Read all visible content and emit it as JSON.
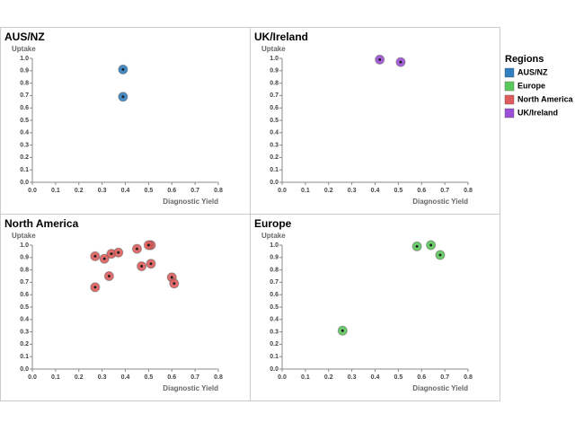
{
  "chart_data": [
    {
      "type": "scatter",
      "title": "AUS/NZ",
      "y_label": "Uptake",
      "x_label": "Diagnostic Yield",
      "series": [
        {
          "color": "#2f7fc1",
          "x": [
            0.39,
            0.39
          ],
          "values": [
            0.91,
            0.69
          ]
        }
      ],
      "xlim": [
        0,
        0.8
      ],
      "ylim": [
        0,
        1
      ],
      "xticks": [
        {
          "value": 0,
          "label": "0.0"
        },
        0.1,
        0.2,
        0.3,
        0.4,
        0.5,
        0.6,
        0.7,
        0.8
      ],
      "yticks": [
        {
          "value": 0,
          "label": "0.0"
        },
        0.1,
        0.2,
        0.3,
        0.4,
        0.5,
        0.6,
        0.7,
        0.8,
        0.9,
        {
          "value": 1,
          "label": "1.0"
        }
      ]
    },
    {
      "type": "scatter",
      "title": "UK/Ireland",
      "y_label": "Uptake",
      "x_label": "Diagnostic Yield",
      "series": [
        {
          "color": "#9b4fd6",
          "x": [
            0.42,
            0.51
          ],
          "values": [
            0.99,
            0.97
          ]
        }
      ],
      "xlim": [
        0,
        0.8
      ],
      "ylim": [
        0,
        1
      ],
      "xticks": [
        {
          "value": 0,
          "label": "0.0"
        },
        0.1,
        0.2,
        0.3,
        0.4,
        0.5,
        0.6,
        0.7,
        0.8
      ],
      "yticks": [
        {
          "value": 0,
          "label": "0.0"
        },
        0.1,
        0.2,
        0.3,
        0.4,
        0.5,
        0.6,
        0.7,
        0.8,
        0.9,
        {
          "value": 1,
          "label": "1.0"
        }
      ]
    },
    {
      "type": "scatter",
      "title": "North America",
      "y_label": "Uptake",
      "x_label": "Diagnostic Yield",
      "series": [
        {
          "color": "#e05c5c",
          "x": [
            0.27,
            0.31,
            0.34,
            0.37,
            0.45,
            0.51,
            0.5,
            0.47,
            0.51,
            0.33,
            0.6,
            0.61,
            0.27
          ],
          "values": [
            0.91,
            0.89,
            0.93,
            0.94,
            0.97,
            1.0,
            1.0,
            0.83,
            0.85,
            0.75,
            0.74,
            0.69,
            0.66
          ]
        }
      ],
      "xlim": [
        0,
        0.8
      ],
      "ylim": [
        0,
        1
      ],
      "xticks": [
        {
          "value": 0,
          "label": "0.0"
        },
        0.1,
        0.2,
        0.3,
        0.4,
        0.5,
        0.6,
        0.7,
        0.8
      ],
      "yticks": [
        {
          "value": 0,
          "label": "0.0"
        },
        0.1,
        0.2,
        0.3,
        0.4,
        0.5,
        0.6,
        0.7,
        0.8,
        0.9,
        {
          "value": 1,
          "label": "1.0"
        }
      ]
    },
    {
      "type": "scatter",
      "title": "Europe",
      "y_label": "Uptake",
      "x_label": "Diagnostic Yield",
      "series": [
        {
          "color": "#5cc95c",
          "x": [
            0.58,
            0.64,
            0.68,
            0.26
          ],
          "values": [
            0.99,
            1.0,
            0.92,
            0.31
          ]
        }
      ],
      "xlim": [
        0,
        0.8
      ],
      "ylim": [
        0,
        1
      ],
      "xticks": [
        {
          "value": 0,
          "label": "0.0"
        },
        0.1,
        0.2,
        0.3,
        0.4,
        0.5,
        0.6,
        0.7,
        0.8
      ],
      "yticks": [
        {
          "value": 0,
          "label": "0.0"
        },
        0.1,
        0.2,
        0.3,
        0.4,
        0.5,
        0.6,
        0.7,
        0.8,
        0.9,
        {
          "value": 1,
          "label": "1.0"
        }
      ]
    }
  ],
  "legend": {
    "title": "Regions",
    "entries": [
      {
        "name": "AUS/NZ",
        "color": "#2f7fc1"
      },
      {
        "name": "Europe",
        "color": "#5cc95c"
      },
      {
        "name": "North America",
        "color": "#e05c5c"
      },
      {
        "name": "UK/Ireland",
        "color": "#9b4fd6"
      }
    ]
  }
}
